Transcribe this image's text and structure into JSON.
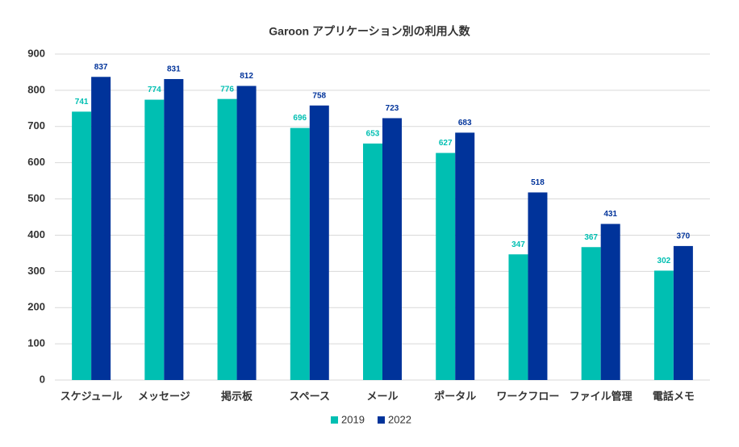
{
  "chart_data": {
    "type": "bar",
    "title": "Garoon アプリケーション別の利用人数",
    "categories": [
      "スケジュール",
      "メッセージ",
      "掲示板",
      "スペース",
      "メール",
      "ポータル",
      "ワークフロー",
      "ファイル管理",
      "電話メモ"
    ],
    "series": [
      {
        "name": "2019",
        "color": "#00bfb2",
        "values": [
          741,
          774,
          776,
          696,
          653,
          627,
          347,
          367,
          302
        ]
      },
      {
        "name": "2022",
        "color": "#00339a",
        "values": [
          837,
          831,
          812,
          758,
          723,
          683,
          518,
          431,
          370
        ]
      }
    ],
    "ylim": [
      0,
      900
    ],
    "yticks": [
      0,
      100,
      200,
      300,
      400,
      500,
      600,
      700,
      800,
      900
    ],
    "grid": true,
    "legend": "bottom"
  }
}
